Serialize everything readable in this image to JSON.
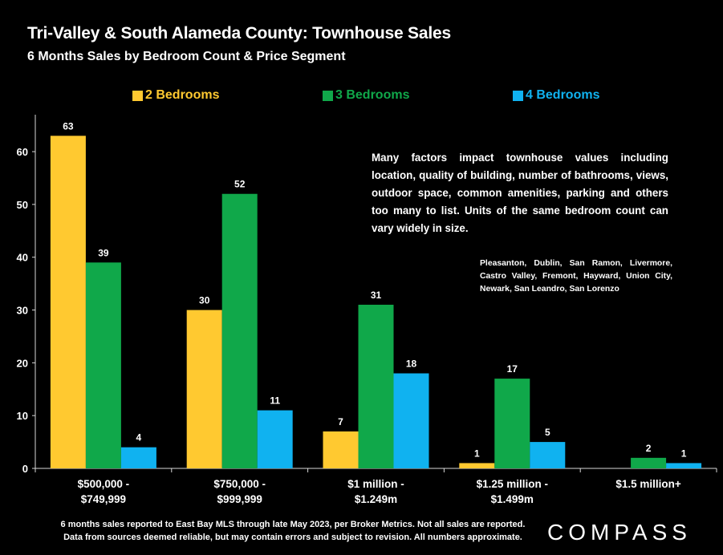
{
  "title": "Tri-Valley & South Alameda County: Townhouse  Sales",
  "subtitle": "6 Months Sales by Bedroom Count & Price Segment",
  "note": "Many factors impact townhouse values including location, quality of building, number of bathrooms, views, outdoor space, common amenities, parking and others too many to list. Units of the same bedroom count can vary widely in size.",
  "cities": "Pleasanton, Dublin, San Ramon, Livermore, Castro Valley, Fremont, Hayward, Union City, Newark, San Leandro, San Lorenzo",
  "footnote_line1": "6 months sales reported to East Bay MLS through late May 2023, per Broker Metrics. Not all sales are reported.",
  "footnote_line2": "Data from sources deemed reliable, but may contain errors and subject to revision. All numbers approximate.",
  "logo": "COMPASS",
  "chart_data": {
    "type": "bar",
    "categories": [
      [
        "$500,000 -",
        "$749,999"
      ],
      [
        "$750,000 -",
        "$999,999"
      ],
      [
        "$1 million -",
        "$1.249m"
      ],
      [
        "$1.25 million -",
        "$1.499m"
      ],
      [
        "$1.5 million+"
      ]
    ],
    "series": [
      {
        "name": "2 Bedrooms",
        "color": "#ffc930",
        "values": [
          63,
          30,
          7,
          1,
          null
        ]
      },
      {
        "name": "3 Bedrooms",
        "color": "#10a84a",
        "values": [
          39,
          52,
          31,
          17,
          2
        ]
      },
      {
        "name": "4 Bedrooms",
        "color": "#10b2f0",
        "values": [
          4,
          11,
          18,
          5,
          1
        ]
      }
    ],
    "yticks": [
      0,
      10,
      20,
      30,
      40,
      50,
      60
    ],
    "ylim": [
      0,
      67
    ],
    "grid": false,
    "legend": "top"
  }
}
